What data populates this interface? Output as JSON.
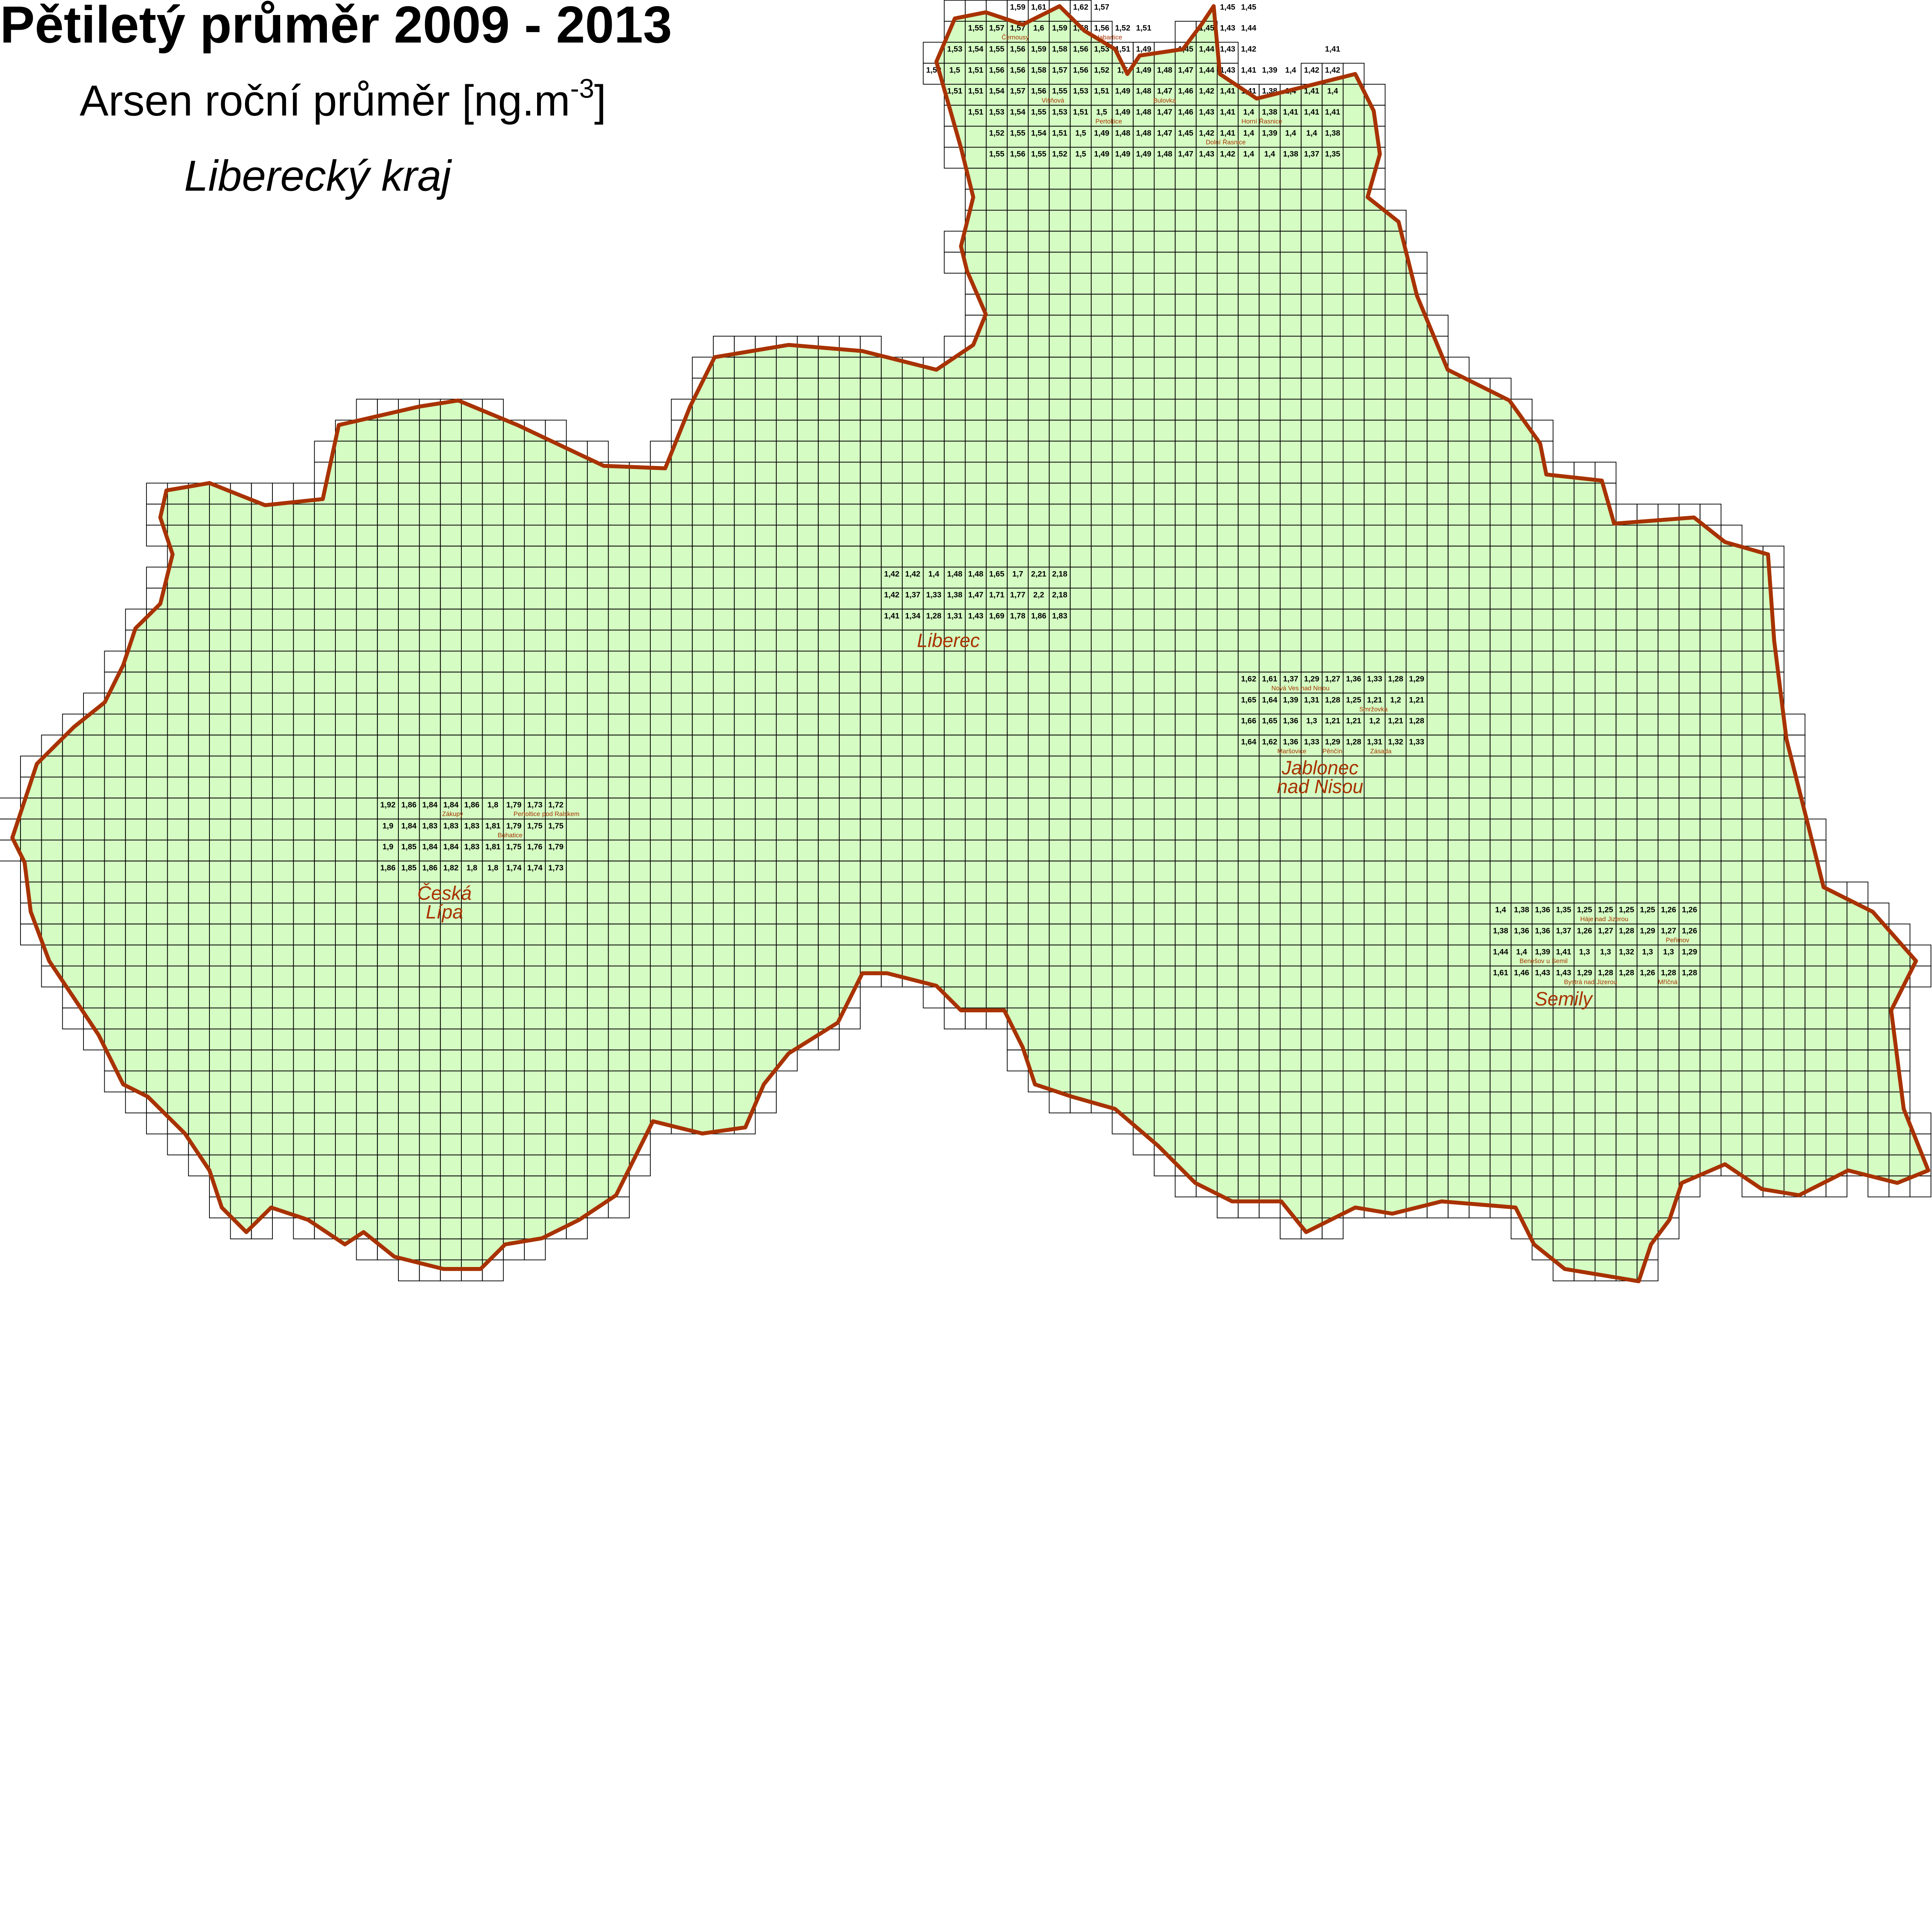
{
  "title": "Pětiletý průměr 2009 - 2013",
  "subtitle": {
    "text": "Arsen roční průměr [ng.m",
    "sup": "-3",
    "close": "]"
  },
  "region": "Liberecký kraj",
  "colors": {
    "boundary": "#a83200",
    "forest": "#d5fcc3",
    "label": "#a83200",
    "grid": "#000000",
    "water": "#9bd7f0"
  },
  "cities": [
    {
      "name": "Liberec"
    },
    {
      "name": "Jablonec",
      "name2": "nad Nisou"
    },
    {
      "name": "Česká",
      "name2": "Lípa"
    },
    {
      "name": "Semily"
    }
  ],
  "places": [
    {
      "name": "Černousy"
    },
    {
      "name": "Habartice"
    },
    {
      "name": "Višňová"
    },
    {
      "name": "Bulovka"
    },
    {
      "name": "Pertoltice"
    },
    {
      "name": "Horní",
      "name2": "Řasnice"
    },
    {
      "name": "Dolní",
      "name2": "Řasnice"
    },
    {
      "name": "Nová Ves",
      "name2": "nad Nisou"
    },
    {
      "name": "Smržovka"
    },
    {
      "name": "Zásada"
    },
    {
      "name": "Maršovice"
    },
    {
      "name": "Pěnčín"
    },
    {
      "name": "Zákupy"
    },
    {
      "name": "Pertoltice",
      "name2": "pod Ralskem"
    },
    {
      "name": "Bohatice"
    },
    {
      "name": "Háje nad",
      "name2": "Jizerou"
    },
    {
      "name": "Peřimov"
    },
    {
      "name": "Benešov",
      "name2": "u Semil"
    },
    {
      "name": "Bystrá nad",
      "name2": "Jizerou"
    },
    {
      "name": "Mříčná"
    }
  ],
  "grid_values": {
    "unit": "ng.m-3",
    "rows": [
      {
        "row": 0,
        "col": 48,
        "values": [
          "1,59",
          "1,61",
          null,
          "1,62",
          "1,57",
          null,
          null,
          null,
          null,
          null,
          "1,45",
          "1,45"
        ]
      },
      {
        "row": 1,
        "col": 46,
        "values": [
          "1,55",
          "1,57",
          "1,57",
          "1,6",
          "1,59",
          "1,58",
          "1,56",
          "1,52",
          "1,51",
          null,
          null,
          "1,45",
          "1,43",
          "1,44"
        ]
      },
      {
        "row": 2,
        "col": 45,
        "values": [
          "1,53",
          "1,54",
          "1,55",
          "1,56",
          "1,59",
          "1,58",
          "1,56",
          "1,53",
          "1,51",
          "1,49",
          null,
          "1,45",
          "1,44",
          "1,43",
          "1,42",
          null,
          null,
          null,
          "1,41"
        ]
      },
      {
        "row": 3,
        "col": 44,
        "values": [
          "1,52",
          "1,5",
          "1,51",
          "1,56",
          "1,56",
          "1,58",
          "1,57",
          "1,56",
          "1,52",
          "1,5",
          "1,49",
          "1,48",
          "1,47",
          "1,44",
          "1,43",
          "1,41",
          "1,39",
          "1,4",
          "1,42",
          "1,42"
        ]
      },
      {
        "row": 4,
        "col": 45,
        "values": [
          "1,51",
          "1,51",
          "1,54",
          "1,57",
          "1,56",
          "1,55",
          "1,53",
          "1,51",
          "1,49",
          "1,48",
          "1,47",
          "1,46",
          "1,42",
          "1,41",
          "1,41",
          "1,38",
          "1,4",
          "1,41",
          "1,4"
        ]
      },
      {
        "row": 5,
        "col": 46,
        "values": [
          "1,51",
          "1,53",
          "1,54",
          "1,55",
          "1,53",
          "1,51",
          "1,5",
          "1,49",
          "1,48",
          "1,47",
          "1,46",
          "1,43",
          "1,41",
          "1,4",
          "1,38",
          "1,41",
          "1,41",
          "1,41"
        ]
      },
      {
        "row": 6,
        "col": 47,
        "values": [
          "1,52",
          "1,55",
          "1,54",
          "1,51",
          "1,5",
          "1,49",
          "1,48",
          "1,48",
          "1,47",
          "1,45",
          "1,42",
          "1,41",
          "1,4",
          "1,39",
          "1,4",
          "1,4",
          "1,38"
        ]
      },
      {
        "row": 7,
        "col": 47,
        "values": [
          "1,55",
          "1,56",
          "1,55",
          "1,52",
          "1,5",
          "1,49",
          "1,49",
          "1,49",
          "1,48",
          "1,47",
          "1,43",
          "1,42",
          "1,4",
          "1,4",
          "1,38",
          "1,37",
          "1,35"
        ]
      },
      {
        "row": 27,
        "col": 42,
        "values": [
          "1,42",
          "1,42",
          "1,4",
          "1,48",
          "1,48",
          "1,65",
          "1,7",
          "2,21",
          "2,18"
        ]
      },
      {
        "row": 28,
        "col": 42,
        "values": [
          "1,42",
          "1,37",
          "1,33",
          "1,38",
          "1,47",
          "1,71",
          "1,77",
          "2,2",
          "2,18"
        ]
      },
      {
        "row": 29,
        "col": 42,
        "values": [
          "1,41",
          "1,34",
          "1,28",
          "1,31",
          "1,43",
          "1,69",
          "1,78",
          "1,86",
          "1,83"
        ]
      },
      {
        "row": 32,
        "col": 59,
        "values": [
          "1,62",
          "1,61",
          "1,37",
          "1,29",
          "1,27",
          "1,36",
          "1,33",
          "1,28",
          "1,29"
        ]
      },
      {
        "row": 33,
        "col": 59,
        "values": [
          "1,65",
          "1,64",
          "1,39",
          "1,31",
          "1,28",
          "1,25",
          "1,21",
          "1,2",
          "1,21"
        ]
      },
      {
        "row": 34,
        "col": 59,
        "values": [
          "1,66",
          "1,65",
          "1,36",
          "1,3",
          "1,21",
          "1,21",
          "1,2",
          "1,21",
          "1,28"
        ]
      },
      {
        "row": 35,
        "col": 59,
        "values": [
          "1,64",
          "1,62",
          "1,36",
          "1,33",
          "1,29",
          "1,28",
          "1,31",
          "1,32",
          "1,33"
        ]
      },
      {
        "row": 38,
        "col": 18,
        "values": [
          "1,92",
          "1,86",
          "1,84",
          "1,84",
          "1,86",
          "1,8",
          "1,79",
          "1,73",
          "1,72"
        ]
      },
      {
        "row": 39,
        "col": 18,
        "values": [
          "1,9",
          "1,84",
          "1,83",
          "1,83",
          "1,83",
          "1,81",
          "1,79",
          "1,75",
          "1,75"
        ]
      },
      {
        "row": 40,
        "col": 18,
        "values": [
          "1,9",
          "1,85",
          "1,84",
          "1,84",
          "1,83",
          "1,81",
          "1,75",
          "1,76",
          "1,79"
        ]
      },
      {
        "row": 41,
        "col": 18,
        "values": [
          "1,86",
          "1,85",
          "1,86",
          "1,82",
          "1,8",
          "1,8",
          "1,74",
          "1,74",
          "1,73"
        ]
      },
      {
        "row": 43,
        "col": 71,
        "values": [
          "1,4",
          "1,38",
          "1,36",
          "1,35",
          "1,25",
          "1,25",
          "1,25",
          "1,25",
          "1,26",
          "1,26"
        ]
      },
      {
        "row": 44,
        "col": 71,
        "values": [
          "1,38",
          "1,36",
          "1,36",
          "1,37",
          "1,26",
          "1,27",
          "1,28",
          "1,29",
          "1,27",
          "1,26"
        ]
      },
      {
        "row": 45,
        "col": 71,
        "values": [
          "1,44",
          "1,4",
          "1,39",
          "1,41",
          "1,3",
          "1,3",
          "1,32",
          "1,3",
          "1,3",
          "1,29"
        ]
      },
      {
        "row": 46,
        "col": 71,
        "values": [
          "1,61",
          "1,46",
          "1,43",
          "1,43",
          "1,29",
          "1,28",
          "1,28",
          "1,26",
          "1,28",
          "1,28"
        ]
      }
    ]
  }
}
